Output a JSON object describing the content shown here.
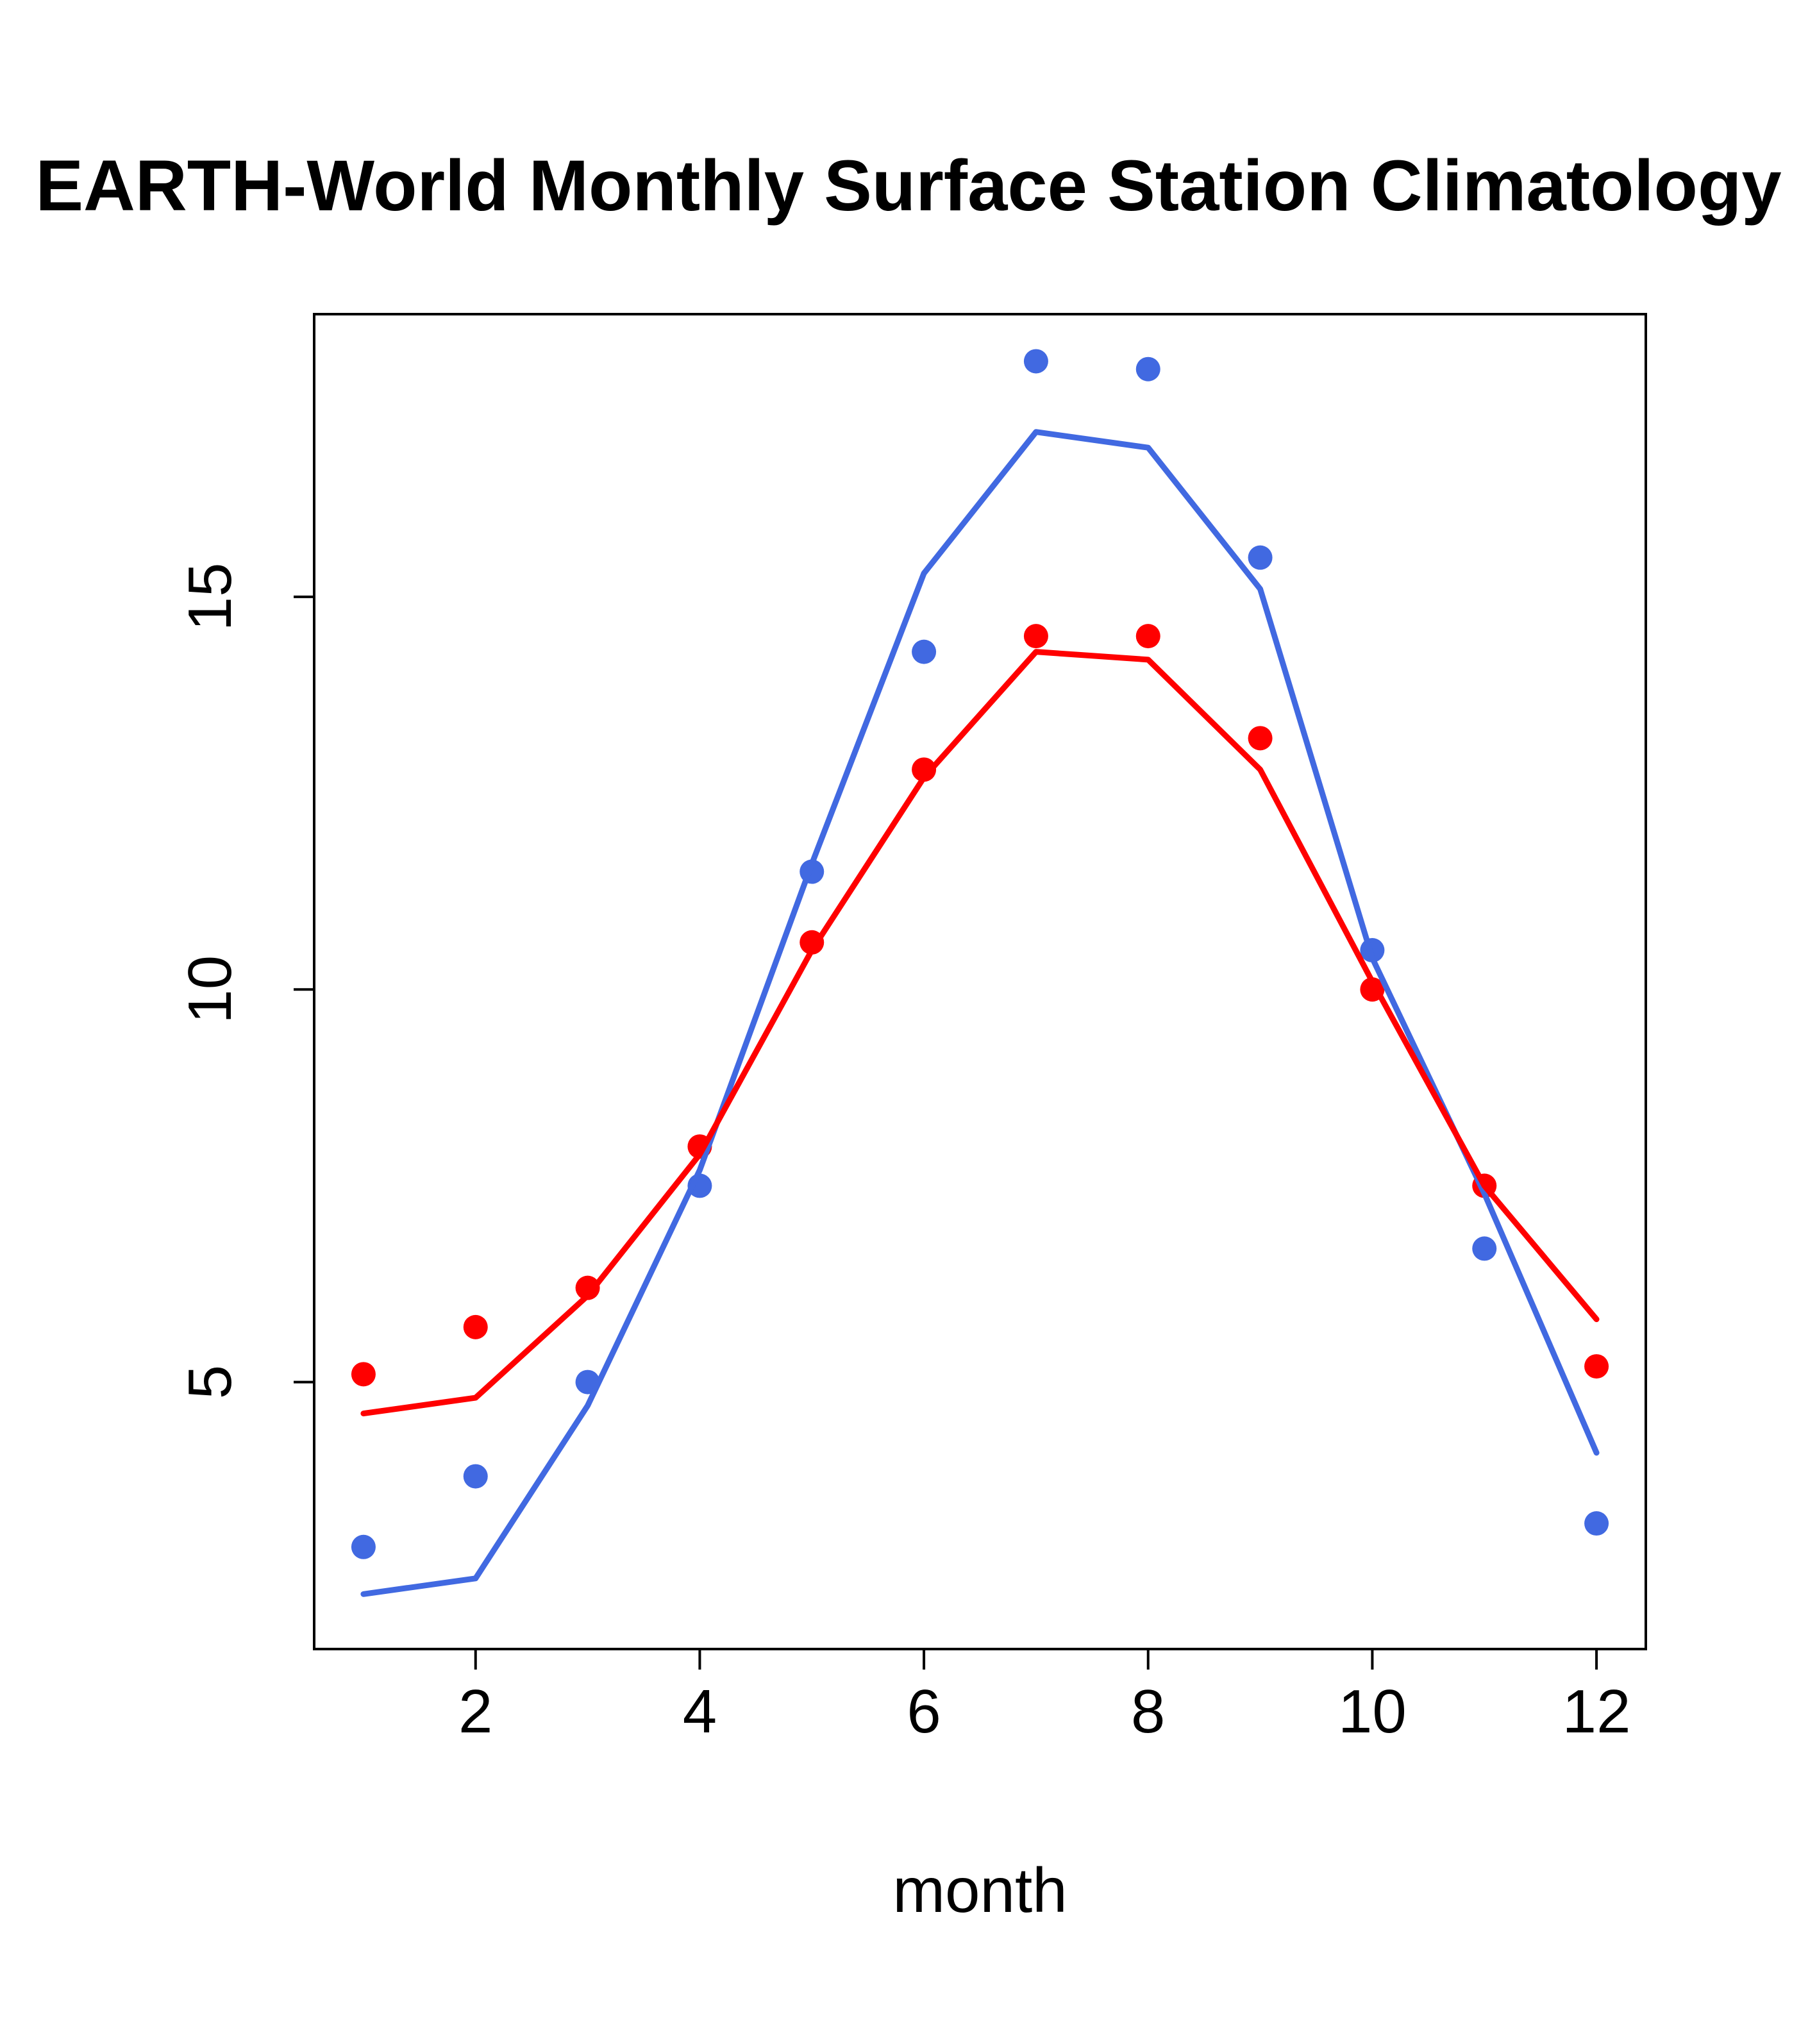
{
  "chart_data": {
    "type": "line",
    "title": "EARTH-World Monthly Surface Station Climatology",
    "xlabel": "month",
    "ylabel": "",
    "x": [
      1,
      2,
      3,
      4,
      5,
      6,
      7,
      8,
      9,
      10,
      11,
      12
    ],
    "xticks": [
      2,
      4,
      6,
      8,
      10,
      12
    ],
    "yticks": [
      5,
      10,
      15
    ],
    "xlim": [
      0.56,
      12.44
    ],
    "ylim": [
      1.6,
      18.6
    ],
    "grid": false,
    "legend": "none",
    "colors": {
      "blue_series": "#4169E1",
      "red_series": "#FF0000",
      "axis": "#000000"
    },
    "series": [
      {
        "name": "blue-station-points",
        "draw": "points",
        "color": "#4169E1",
        "values": [
          2.9,
          3.8,
          5.0,
          7.5,
          11.5,
          14.3,
          18.0,
          17.9,
          15.5,
          10.5,
          6.7,
          3.2
        ]
      },
      {
        "name": "red-station-points",
        "draw": "points",
        "color": "#FF0000",
        "values": [
          5.1,
          5.7,
          6.2,
          8.0,
          10.6,
          12.8,
          14.5,
          14.5,
          13.2,
          10.0,
          7.5,
          5.2
        ]
      },
      {
        "name": "blue-climatology-line",
        "draw": "line",
        "color": "#4169E1",
        "values": [
          2.3,
          2.5,
          4.7,
          7.7,
          11.6,
          15.3,
          17.1,
          16.9,
          15.1,
          10.4,
          7.4,
          4.1
        ]
      },
      {
        "name": "red-climatology-line",
        "draw": "line",
        "color": "#FF0000",
        "values": [
          4.6,
          4.8,
          6.1,
          7.9,
          10.5,
          12.7,
          14.3,
          14.2,
          12.8,
          10.1,
          7.5,
          5.8
        ]
      }
    ]
  }
}
